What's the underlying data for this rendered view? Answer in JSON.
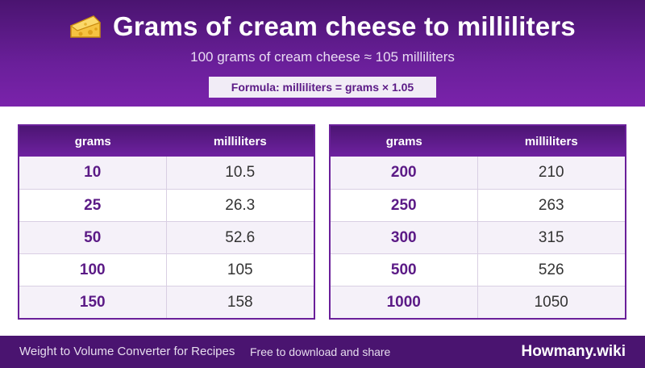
{
  "header": {
    "title": "Grams of cream cheese to milliliters",
    "subtitle": "100 grams of cream cheese ≈ 105 milliliters",
    "formula": "Formula: milliliters = grams × 1.05",
    "icon": "cheese-icon",
    "colors": {
      "primary": "#6a1f9a",
      "dark": "#4a1470"
    }
  },
  "tables": [
    {
      "headers": [
        "grams",
        "milliliters"
      ],
      "rows": [
        {
          "grams": "10",
          "ml": "10.5"
        },
        {
          "grams": "25",
          "ml": "26.3"
        },
        {
          "grams": "50",
          "ml": "52.6"
        },
        {
          "grams": "100",
          "ml": "105"
        },
        {
          "grams": "150",
          "ml": "158"
        }
      ]
    },
    {
      "headers": [
        "grams",
        "milliliters"
      ],
      "rows": [
        {
          "grams": "200",
          "ml": "210"
        },
        {
          "grams": "250",
          "ml": "263"
        },
        {
          "grams": "300",
          "ml": "315"
        },
        {
          "grams": "500",
          "ml": "526"
        },
        {
          "grams": "1000",
          "ml": "1050"
        }
      ]
    }
  ],
  "footer": {
    "left": "Weight to Volume Converter for Recipes",
    "middle": "Free to download and share",
    "brand": "Howmany.wiki"
  }
}
